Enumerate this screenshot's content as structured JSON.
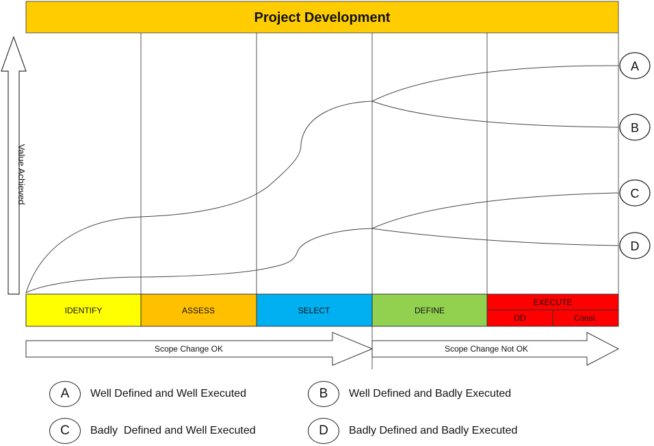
{
  "title": "Project Development",
  "y_axis_label": "Value Achieved",
  "phases": [
    {
      "label": "IDENTIFY",
      "color": "#ffff00"
    },
    {
      "label": "ASSESS",
      "color": "#ffc000"
    },
    {
      "label": "SELECT",
      "color": "#00b0f0"
    },
    {
      "label": "DEFINE",
      "color": "#92d050"
    },
    {
      "label": "EXECUTE",
      "color": "#ff0000",
      "sub": [
        "DD",
        "Const."
      ]
    }
  ],
  "title_bar_color": "#ffcc00",
  "scope_arrows": {
    "left": "Scope Change OK",
    "right": "Scope Change Not OK"
  },
  "curve_markers": [
    "A",
    "B",
    "C",
    "D"
  ],
  "legend": [
    {
      "key": "A",
      "text": "Well Defined and Well Executed"
    },
    {
      "key": "B",
      "text": "Well Defined and Badly Executed"
    },
    {
      "key": "C",
      "text": "Badly  Defined and Well Executed"
    },
    {
      "key": "D",
      "text": "Badly Defined and Badly Executed"
    }
  ]
}
